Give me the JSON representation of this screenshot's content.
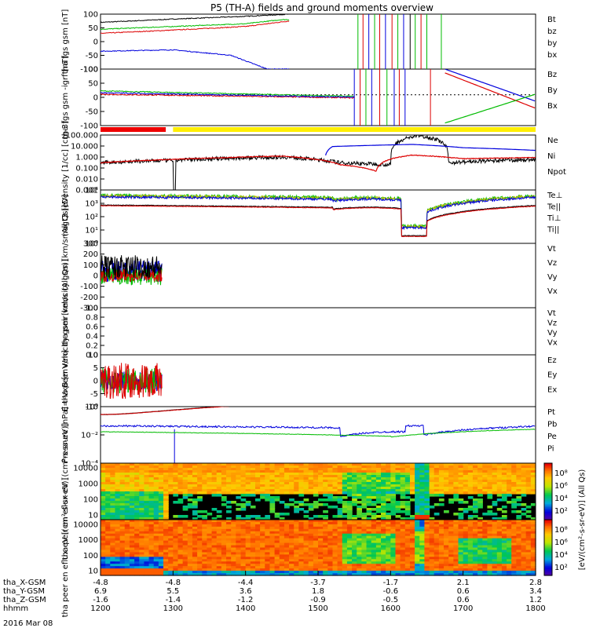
{
  "chart_data": {
    "type": "line",
    "title": "P5 (TH-A) fields and ground moments overview",
    "date_label": "2016 Mar 08",
    "x_axis": {
      "type": "time",
      "xlim": [
        "12:00",
        "18:00"
      ],
      "tick_rows": [
        {
          "label": "tha_X-GSM",
          "values": [
            "-4.8",
            "-4.8",
            "-4.4",
            "-3.7",
            "-1.7",
            "2.1",
            "2.8"
          ]
        },
        {
          "label": "tha_Y-GSM",
          "values": [
            "6.9",
            "5.5",
            "3.6",
            "1.8",
            "-0.6",
            "0.6",
            "3.4"
          ]
        },
        {
          "label": "tha_Z-GSM",
          "values": [
            "-1.6",
            "-1.4",
            "-1.2",
            "-0.9",
            "-0.5",
            "0.6",
            "1.2"
          ]
        },
        {
          "label": "hhmm",
          "values": [
            "1200",
            "1300",
            "1400",
            "1500",
            "1600",
            "1700",
            "1800"
          ]
        }
      ]
    },
    "panels": [
      {
        "ylabel": "tha fgs gsm [nT]",
        "ylim": [
          -100,
          100
        ],
        "yticks": [
          "100",
          "50",
          "0",
          "-50",
          "-100"
        ],
        "legend": [
          {
            "name": "Bt",
            "color": "#000000"
          },
          {
            "name": "bz",
            "color": "#dd0000"
          },
          {
            "name": "by",
            "color": "#00bb00"
          },
          {
            "name": "bx",
            "color": "#0000dd"
          }
        ]
      },
      {
        "ylabel": "tha fgs gsm -igrf [nT]",
        "ylim": [
          -120,
          100
        ],
        "yticks": [
          "100",
          "50",
          "0",
          "-50",
          "-100"
        ],
        "legend": [
          {
            "name": "Bz",
            "color": "#dd0000"
          },
          {
            "name": "By",
            "color": "#00bb00"
          },
          {
            "name": "Bx",
            "color": "#0000dd"
          }
        ]
      },
      {
        "ylabel": "Density [1/cc] [cm-3]",
        "scale": "log",
        "ylim": [
          0.001,
          100
        ],
        "yticks": [
          "100.000",
          "10.000",
          "1.000",
          "0.100",
          "0.010",
          "0.001"
        ],
        "legend": [
          {
            "name": "Ne",
            "color": "#dd0000"
          },
          {
            "name": "Ni",
            "color": "#000000"
          },
          {
            "name": "Npot",
            "color": "#0000dd"
          }
        ]
      },
      {
        "ylabel": "magt3 [eV]",
        "scale": "log",
        "ylim": [
          1,
          10000
        ],
        "yticks": [
          "10⁴",
          "10³",
          "10²",
          "10¹",
          "10⁰"
        ],
        "legend": [
          {
            "name": "Te⊥",
            "color": "#dd0000"
          },
          {
            "name": "Te||",
            "color": "#000000"
          },
          {
            "name": "Ti⊥",
            "color": "#bbbb00"
          },
          {
            "name": "Ti||",
            "color": "#00bb00"
          }
        ]
      },
      {
        "ylabel": "tha peir velocity gsm [km/s (All Qs)]",
        "ylim": [
          -300,
          300
        ],
        "yticks": [
          "300",
          "200",
          "100",
          "0",
          "-100",
          "-200",
          "-300"
        ],
        "legend": [
          {
            "name": "Vt",
            "color": "#000000"
          },
          {
            "name": "Vz",
            "color": "#dd0000"
          },
          {
            "name": "Vy",
            "color": "#00bb00"
          },
          {
            "name": "Vx",
            "color": "#0000dd"
          }
        ]
      },
      {
        "ylabel": "tha peer velocity gsm [km/s (All Qs)]",
        "ylim": [
          0,
          1
        ],
        "yticks": [
          "1.0",
          "0.8",
          "0.6",
          "0.4",
          "0.2",
          "0.0"
        ],
        "legend": [
          {
            "name": "Vt",
            "color": "#000000"
          },
          {
            "name": "Vz",
            "color": "#dd0000"
          },
          {
            "name": "Vy",
            "color": "#00bb00"
          },
          {
            "name": "Vx",
            "color": "#0000dd"
          }
        ]
      },
      {
        "ylabel": "E=-VxB [mV/m]",
        "ylim": [
          -10,
          10
        ],
        "yticks": [
          "10",
          "5",
          "0",
          "-5",
          "-10"
        ],
        "legend": [
          {
            "name": "Ez",
            "color": "#dd0000"
          },
          {
            "name": "Ey",
            "color": "#00bb00"
          },
          {
            "name": "Ex",
            "color": "#0000dd"
          }
        ]
      },
      {
        "ylabel": "Pressure [nPa]",
        "scale": "log",
        "ylim": [
          1e-05,
          1
        ],
        "yticks": [
          "10⁰",
          "10⁻²",
          "10⁻⁴"
        ],
        "legend": [
          {
            "name": "Pt",
            "color": "#000000"
          },
          {
            "name": "Pb",
            "color": "#dd0000"
          },
          {
            "name": "Pe",
            "color": "#00bb00"
          },
          {
            "name": "Pi",
            "color": "#0000dd"
          }
        ]
      },
      {
        "ylabel": "tha peir en eflux eV [(cm²-s-sr-eV)]",
        "type": "heatmap",
        "scale": "log",
        "ylim": [
          5,
          20000
        ],
        "yticks": [
          "10000",
          "1000",
          "100",
          "10"
        ]
      },
      {
        "ylabel": "tha peer en eflux eV [(cm²-s-sr-eV)]",
        "type": "heatmap",
        "scale": "log",
        "ylim": [
          5,
          20000
        ],
        "yticks": [
          "10000",
          "1000",
          "100",
          "10"
        ]
      }
    ],
    "colorbar": {
      "label": "[eV/(cm²-s-sr-eV)] (All Qs)",
      "ticks": [
        "10⁸",
        "10⁶",
        "10⁴",
        "10²",
        "10⁸",
        "10⁶",
        "10⁴",
        "10²"
      ]
    },
    "key_values": {
      "Bt": [
        [
          12.0,
          70
        ],
        [
          13.0,
          82
        ],
        [
          14.0,
          92
        ],
        [
          14.6,
          100
        ]
      ],
      "Bz": [
        [
          12.0,
          30
        ],
        [
          13.0,
          42
        ],
        [
          14.0,
          55
        ],
        [
          14.6,
          75
        ]
      ],
      "By": [
        [
          12.0,
          45
        ],
        [
          13.0,
          55
        ],
        [
          14.0,
          65
        ],
        [
          14.5,
          80
        ]
      ],
      "Bx": [
        [
          12.0,
          -35
        ],
        [
          13.0,
          -30
        ],
        [
          13.8,
          -50
        ],
        [
          14.3,
          -100
        ]
      ],
      "Ne": [
        [
          12.0,
          0.3
        ],
        [
          13.0,
          0.6
        ],
        [
          14.5,
          1.2
        ],
        [
          15.3,
          0.2
        ],
        [
          15.8,
          0.05
        ],
        [
          16.3,
          1.5
        ],
        [
          17.0,
          0.7
        ],
        [
          18.0,
          0.9
        ]
      ],
      "Ni": [
        [
          12.0,
          0.3
        ],
        [
          13.0,
          0.5
        ],
        [
          14.5,
          1.0
        ],
        [
          15.3,
          0.3
        ],
        [
          16.0,
          0.2
        ],
        [
          16.4,
          90
        ],
        [
          16.8,
          0.3
        ],
        [
          18.0,
          0.6
        ]
      ],
      "Npot": [
        [
          15.1,
          1.1
        ],
        [
          15.2,
          9
        ],
        [
          16.3,
          14
        ],
        [
          17.0,
          7
        ],
        [
          18.0,
          4
        ]
      ]
    }
  },
  "colors": {
    "bt": "#000000",
    "bz": "#dd0000",
    "by": "#00bb00",
    "bx": "#0000dd",
    "yellow": "#ffee00",
    "red": "#ee0000"
  }
}
